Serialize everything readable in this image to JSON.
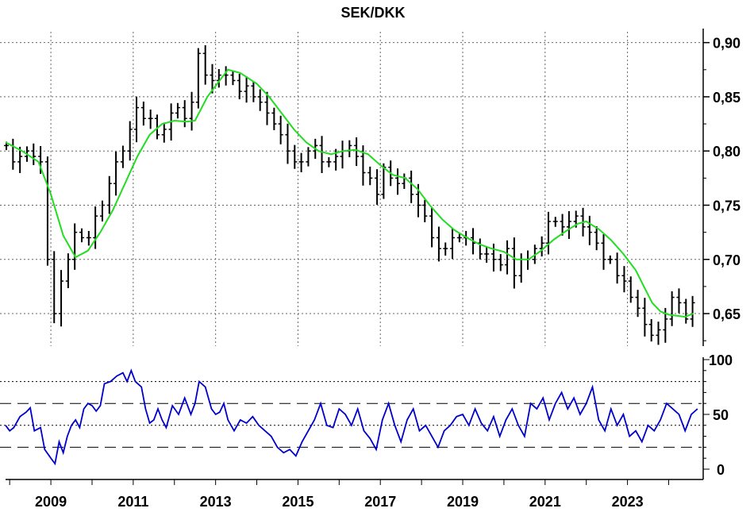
{
  "chart_data": [
    {
      "type": "ohlc",
      "title": "SEK/DKK",
      "x_ticks": [
        "2009",
        "2011",
        "2013",
        "2015",
        "2017",
        "2019",
        "2021",
        "2023"
      ],
      "x_range": [
        2007.9,
        2024.8
      ],
      "y_ticks": [
        "0,90",
        "0,85",
        "0,80",
        "0,75",
        "0,70",
        "0,65"
      ],
      "y_range": [
        0.62,
        0.91
      ],
      "grid": true,
      "colors": {
        "bars": "#000000",
        "moving_average": "#22dd22",
        "grid": "#666666"
      },
      "closes": [
        [
          2007.92,
          0.805
        ],
        [
          2008.08,
          0.79
        ],
        [
          2008.25,
          0.795
        ],
        [
          2008.42,
          0.8
        ],
        [
          2008.58,
          0.795
        ],
        [
          2008.75,
          0.79
        ],
        [
          2008.92,
          0.7
        ],
        [
          2009.08,
          0.65
        ],
        [
          2009.25,
          0.68
        ],
        [
          2009.42,
          0.7
        ],
        [
          2009.58,
          0.725
        ],
        [
          2009.75,
          0.72
        ],
        [
          2009.92,
          0.72
        ],
        [
          2010.08,
          0.74
        ],
        [
          2010.25,
          0.75
        ],
        [
          2010.42,
          0.77
        ],
        [
          2010.58,
          0.79
        ],
        [
          2010.75,
          0.8
        ],
        [
          2010.92,
          0.82
        ],
        [
          2011.08,
          0.84
        ],
        [
          2011.25,
          0.83
        ],
        [
          2011.42,
          0.83
        ],
        [
          2011.58,
          0.815
        ],
        [
          2011.75,
          0.82
        ],
        [
          2011.92,
          0.835
        ],
        [
          2012.08,
          0.84
        ],
        [
          2012.25,
          0.83
        ],
        [
          2012.42,
          0.845
        ],
        [
          2012.58,
          0.89
        ],
        [
          2012.75,
          0.87
        ],
        [
          2012.92,
          0.865
        ],
        [
          2013.08,
          0.87
        ],
        [
          2013.25,
          0.87
        ],
        [
          2013.42,
          0.865
        ],
        [
          2013.58,
          0.855
        ],
        [
          2013.75,
          0.86
        ],
        [
          2013.92,
          0.85
        ],
        [
          2014.08,
          0.845
        ],
        [
          2014.25,
          0.835
        ],
        [
          2014.42,
          0.825
        ],
        [
          2014.58,
          0.815
        ],
        [
          2014.75,
          0.8
        ],
        [
          2014.92,
          0.79
        ],
        [
          2015.08,
          0.79
        ],
        [
          2015.25,
          0.8
        ],
        [
          2015.42,
          0.805
        ],
        [
          2015.58,
          0.79
        ],
        [
          2015.75,
          0.79
        ],
        [
          2015.92,
          0.795
        ],
        [
          2016.08,
          0.8
        ],
        [
          2016.25,
          0.805
        ],
        [
          2016.42,
          0.795
        ],
        [
          2016.58,
          0.78
        ],
        [
          2016.75,
          0.775
        ],
        [
          2016.92,
          0.76
        ],
        [
          2017.08,
          0.785
        ],
        [
          2017.25,
          0.775
        ],
        [
          2017.42,
          0.77
        ],
        [
          2017.58,
          0.775
        ],
        [
          2017.75,
          0.76
        ],
        [
          2017.92,
          0.75
        ],
        [
          2018.08,
          0.74
        ],
        [
          2018.25,
          0.72
        ],
        [
          2018.42,
          0.71
        ],
        [
          2018.58,
          0.71
        ],
        [
          2018.75,
          0.72
        ],
        [
          2018.92,
          0.72
        ],
        [
          2019.08,
          0.72
        ],
        [
          2019.25,
          0.715
        ],
        [
          2019.42,
          0.705
        ],
        [
          2019.58,
          0.705
        ],
        [
          2019.75,
          0.7
        ],
        [
          2019.92,
          0.695
        ],
        [
          2020.08,
          0.71
        ],
        [
          2020.25,
          0.685
        ],
        [
          2020.42,
          0.7
        ],
        [
          2020.58,
          0.7
        ],
        [
          2020.75,
          0.71
        ],
        [
          2020.92,
          0.715
        ],
        [
          2021.08,
          0.735
        ],
        [
          2021.25,
          0.735
        ],
        [
          2021.42,
          0.73
        ],
        [
          2021.58,
          0.735
        ],
        [
          2021.75,
          0.74
        ],
        [
          2021.92,
          0.73
        ],
        [
          2022.08,
          0.725
        ],
        [
          2022.25,
          0.715
        ],
        [
          2022.42,
          0.7
        ],
        [
          2022.58,
          0.7
        ],
        [
          2022.75,
          0.685
        ],
        [
          2022.92,
          0.68
        ],
        [
          2023.08,
          0.665
        ],
        [
          2023.25,
          0.655
        ],
        [
          2023.42,
          0.64
        ],
        [
          2023.58,
          0.63
        ],
        [
          2023.75,
          0.635
        ],
        [
          2023.92,
          0.645
        ],
        [
          2024.08,
          0.665
        ],
        [
          2024.25,
          0.66
        ],
        [
          2024.42,
          0.645
        ],
        [
          2024.58,
          0.66
        ]
      ],
      "moving_average": [
        [
          2007.9,
          0.808
        ],
        [
          2008.3,
          0.8
        ],
        [
          2008.7,
          0.79
        ],
        [
          2009.0,
          0.76
        ],
        [
          2009.3,
          0.722
        ],
        [
          2009.6,
          0.702
        ],
        [
          2009.9,
          0.708
        ],
        [
          2010.2,
          0.725
        ],
        [
          2010.5,
          0.745
        ],
        [
          2010.8,
          0.77
        ],
        [
          2011.1,
          0.795
        ],
        [
          2011.4,
          0.815
        ],
        [
          2011.7,
          0.825
        ],
        [
          2012.0,
          0.828
        ],
        [
          2012.3,
          0.827
        ],
        [
          2012.5,
          0.828
        ],
        [
          2012.8,
          0.85
        ],
        [
          2013.1,
          0.865
        ],
        [
          2013.3,
          0.875
        ],
        [
          2013.6,
          0.872
        ],
        [
          2014.0,
          0.862
        ],
        [
          2014.3,
          0.85
        ],
        [
          2014.6,
          0.835
        ],
        [
          2014.9,
          0.82
        ],
        [
          2015.2,
          0.808
        ],
        [
          2015.5,
          0.8
        ],
        [
          2015.8,
          0.797
        ],
        [
          2016.1,
          0.8
        ],
        [
          2016.4,
          0.801
        ],
        [
          2016.7,
          0.797
        ],
        [
          2017.0,
          0.787
        ],
        [
          2017.3,
          0.778
        ],
        [
          2017.6,
          0.775
        ],
        [
          2017.9,
          0.765
        ],
        [
          2018.2,
          0.75
        ],
        [
          2018.5,
          0.737
        ],
        [
          2018.8,
          0.727
        ],
        [
          2019.1,
          0.72
        ],
        [
          2019.4,
          0.714
        ],
        [
          2019.7,
          0.71
        ],
        [
          2020.0,
          0.707
        ],
        [
          2020.3,
          0.7
        ],
        [
          2020.6,
          0.7
        ],
        [
          2020.9,
          0.708
        ],
        [
          2021.2,
          0.718
        ],
        [
          2021.5,
          0.726
        ],
        [
          2021.8,
          0.733
        ],
        [
          2022.0,
          0.735
        ],
        [
          2022.3,
          0.728
        ],
        [
          2022.6,
          0.718
        ],
        [
          2022.9,
          0.705
        ],
        [
          2023.2,
          0.69
        ],
        [
          2023.4,
          0.675
        ],
        [
          2023.6,
          0.66
        ],
        [
          2023.8,
          0.652
        ],
        [
          2024.0,
          0.649
        ],
        [
          2024.2,
          0.648
        ],
        [
          2024.4,
          0.647
        ],
        [
          2024.6,
          0.65
        ]
      ]
    },
    {
      "type": "line",
      "x_range": [
        2007.9,
        2024.8
      ],
      "y_ticks": [
        "100",
        "50",
        "0"
      ],
      "y_range": [
        0,
        100
      ],
      "dotted_levels": [
        80,
        40
      ],
      "dashed_levels": [
        60,
        20
      ],
      "colors": {
        "line": "#0000cc",
        "levels": "#000000"
      },
      "series": [
        {
          "values": [
            [
              2007.9,
              40
            ],
            [
              2008.0,
              35
            ],
            [
              2008.1,
              38
            ],
            [
              2008.25,
              48
            ],
            [
              2008.4,
              52
            ],
            [
              2008.5,
              56
            ],
            [
              2008.6,
              35
            ],
            [
              2008.75,
              38
            ],
            [
              2008.85,
              18
            ],
            [
              2009.0,
              10
            ],
            [
              2009.1,
              5
            ],
            [
              2009.2,
              25
            ],
            [
              2009.3,
              15
            ],
            [
              2009.4,
              30
            ],
            [
              2009.5,
              40
            ],
            [
              2009.6,
              45
            ],
            [
              2009.7,
              38
            ],
            [
              2009.8,
              55
            ],
            [
              2009.9,
              60
            ],
            [
              2010.0,
              58
            ],
            [
              2010.1,
              53
            ],
            [
              2010.2,
              58
            ],
            [
              2010.3,
              78
            ],
            [
              2010.45,
              80
            ],
            [
              2010.6,
              85
            ],
            [
              2010.75,
              88
            ],
            [
              2010.85,
              80
            ],
            [
              2010.95,
              90
            ],
            [
              2011.05,
              80
            ],
            [
              2011.2,
              75
            ],
            [
              2011.3,
              55
            ],
            [
              2011.4,
              42
            ],
            [
              2011.5,
              45
            ],
            [
              2011.6,
              55
            ],
            [
              2011.7,
              45
            ],
            [
              2011.8,
              38
            ],
            [
              2011.95,
              58
            ],
            [
              2012.1,
              50
            ],
            [
              2012.25,
              65
            ],
            [
              2012.4,
              50
            ],
            [
              2012.5,
              60
            ],
            [
              2012.6,
              80
            ],
            [
              2012.75,
              75
            ],
            [
              2012.9,
              55
            ],
            [
              2013.0,
              50
            ],
            [
              2013.1,
              52
            ],
            [
              2013.2,
              60
            ],
            [
              2013.3,
              45
            ],
            [
              2013.45,
              35
            ],
            [
              2013.6,
              45
            ],
            [
              2013.75,
              42
            ],
            [
              2013.9,
              48
            ],
            [
              2014.05,
              40
            ],
            [
              2014.2,
              35
            ],
            [
              2014.35,
              30
            ],
            [
              2014.5,
              20
            ],
            [
              2014.65,
              15
            ],
            [
              2014.8,
              18
            ],
            [
              2014.95,
              12
            ],
            [
              2015.1,
              25
            ],
            [
              2015.25,
              35
            ],
            [
              2015.4,
              45
            ],
            [
              2015.55,
              60
            ],
            [
              2015.7,
              40
            ],
            [
              2015.85,
              38
            ],
            [
              2016.0,
              55
            ],
            [
              2016.15,
              50
            ],
            [
              2016.3,
              40
            ],
            [
              2016.45,
              55
            ],
            [
              2016.6,
              35
            ],
            [
              2016.75,
              28
            ],
            [
              2016.9,
              18
            ],
            [
              2017.05,
              45
            ],
            [
              2017.2,
              60
            ],
            [
              2017.35,
              40
            ],
            [
              2017.5,
              25
            ],
            [
              2017.65,
              45
            ],
            [
              2017.8,
              55
            ],
            [
              2017.95,
              35
            ],
            [
              2018.1,
              40
            ],
            [
              2018.25,
              30
            ],
            [
              2018.4,
              20
            ],
            [
              2018.55,
              35
            ],
            [
              2018.7,
              40
            ],
            [
              2018.85,
              48
            ],
            [
              2019.0,
              50
            ],
            [
              2019.15,
              40
            ],
            [
              2019.3,
              55
            ],
            [
              2019.45,
              42
            ],
            [
              2019.6,
              35
            ],
            [
              2019.75,
              48
            ],
            [
              2019.9,
              30
            ],
            [
              2020.05,
              45
            ],
            [
              2020.2,
              55
            ],
            [
              2020.35,
              40
            ],
            [
              2020.5,
              30
            ],
            [
              2020.65,
              60
            ],
            [
              2020.8,
              55
            ],
            [
              2020.95,
              65
            ],
            [
              2021.1,
              45
            ],
            [
              2021.25,
              60
            ],
            [
              2021.4,
              70
            ],
            [
              2021.55,
              55
            ],
            [
              2021.7,
              65
            ],
            [
              2021.85,
              50
            ],
            [
              2022.0,
              60
            ],
            [
              2022.15,
              75
            ],
            [
              2022.3,
              45
            ],
            [
              2022.45,
              35
            ],
            [
              2022.6,
              55
            ],
            [
              2022.75,
              40
            ],
            [
              2022.9,
              50
            ],
            [
              2023.05,
              30
            ],
            [
              2023.2,
              35
            ],
            [
              2023.35,
              25
            ],
            [
              2023.5,
              40
            ],
            [
              2023.65,
              35
            ],
            [
              2023.8,
              45
            ],
            [
              2023.95,
              60
            ],
            [
              2024.1,
              55
            ],
            [
              2024.25,
              50
            ],
            [
              2024.4,
              35
            ],
            [
              2024.55,
              50
            ],
            [
              2024.7,
              55
            ]
          ]
        }
      ]
    }
  ]
}
